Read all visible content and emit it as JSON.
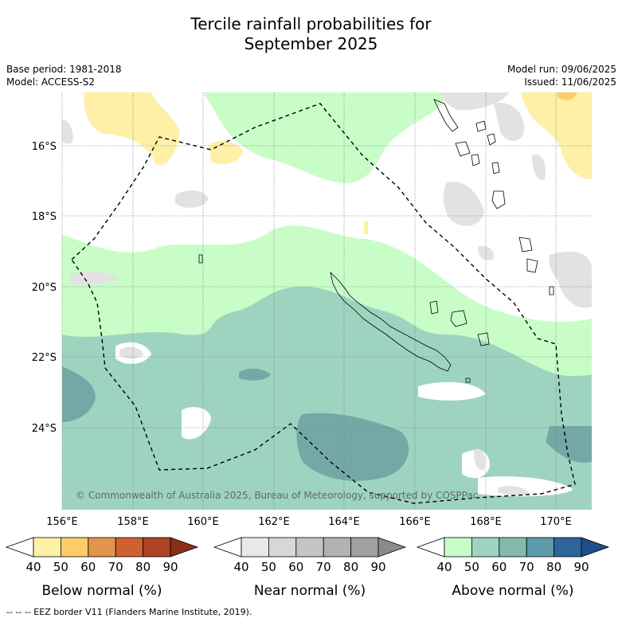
{
  "title_line1": "Tercile rainfall probabilities for",
  "title_line2": "September 2025",
  "meta_left": [
    "Base period: 1981-2018",
    "Model: ACCESS-S2"
  ],
  "meta_right": [
    "Model run: 09/06/2025",
    "Issued: 11/06/2025"
  ],
  "copyright": "© Commonwealth of Australia 2025, Bureau of Meteorology, supported by COSPPac",
  "footnote": "--  --  -- EEZ border V11 (Flanders Marine Institute, 2019).",
  "lon_labels": [
    "156°E",
    "158°E",
    "160°E",
    "162°E",
    "164°E",
    "166°E",
    "168°E",
    "170°E"
  ],
  "lat_labels": [
    "16°S",
    "18°S",
    "20°S",
    "22°S",
    "24°S"
  ],
  "colorbars": [
    {
      "title": "Below normal (%)",
      "ticks": [
        "40",
        "50",
        "60",
        "70",
        "80",
        "90"
      ],
      "colors": [
        "#ffffff",
        "#fff0a8",
        "#fdcd68",
        "#e3944c",
        "#cd6130",
        "#ab4325",
        "#8a3018"
      ]
    },
    {
      "title": "Near normal (%)",
      "ticks": [
        "40",
        "50",
        "60",
        "70",
        "80",
        "90"
      ],
      "colors": [
        "#ffffff",
        "#e8e8e8",
        "#d7d7d7",
        "#c4c4c4",
        "#b2b2b2",
        "#a0a0a0",
        "#8a8a8a"
      ]
    },
    {
      "title": "Above normal (%)",
      "ticks": [
        "40",
        "50",
        "60",
        "70",
        "80",
        "90"
      ],
      "colors": [
        "#ffffff",
        "#c8fdc8",
        "#9ed4bf",
        "#83b9ad",
        "#5c9aaa",
        "#2f6599",
        "#1c4f8a"
      ]
    }
  ]
}
